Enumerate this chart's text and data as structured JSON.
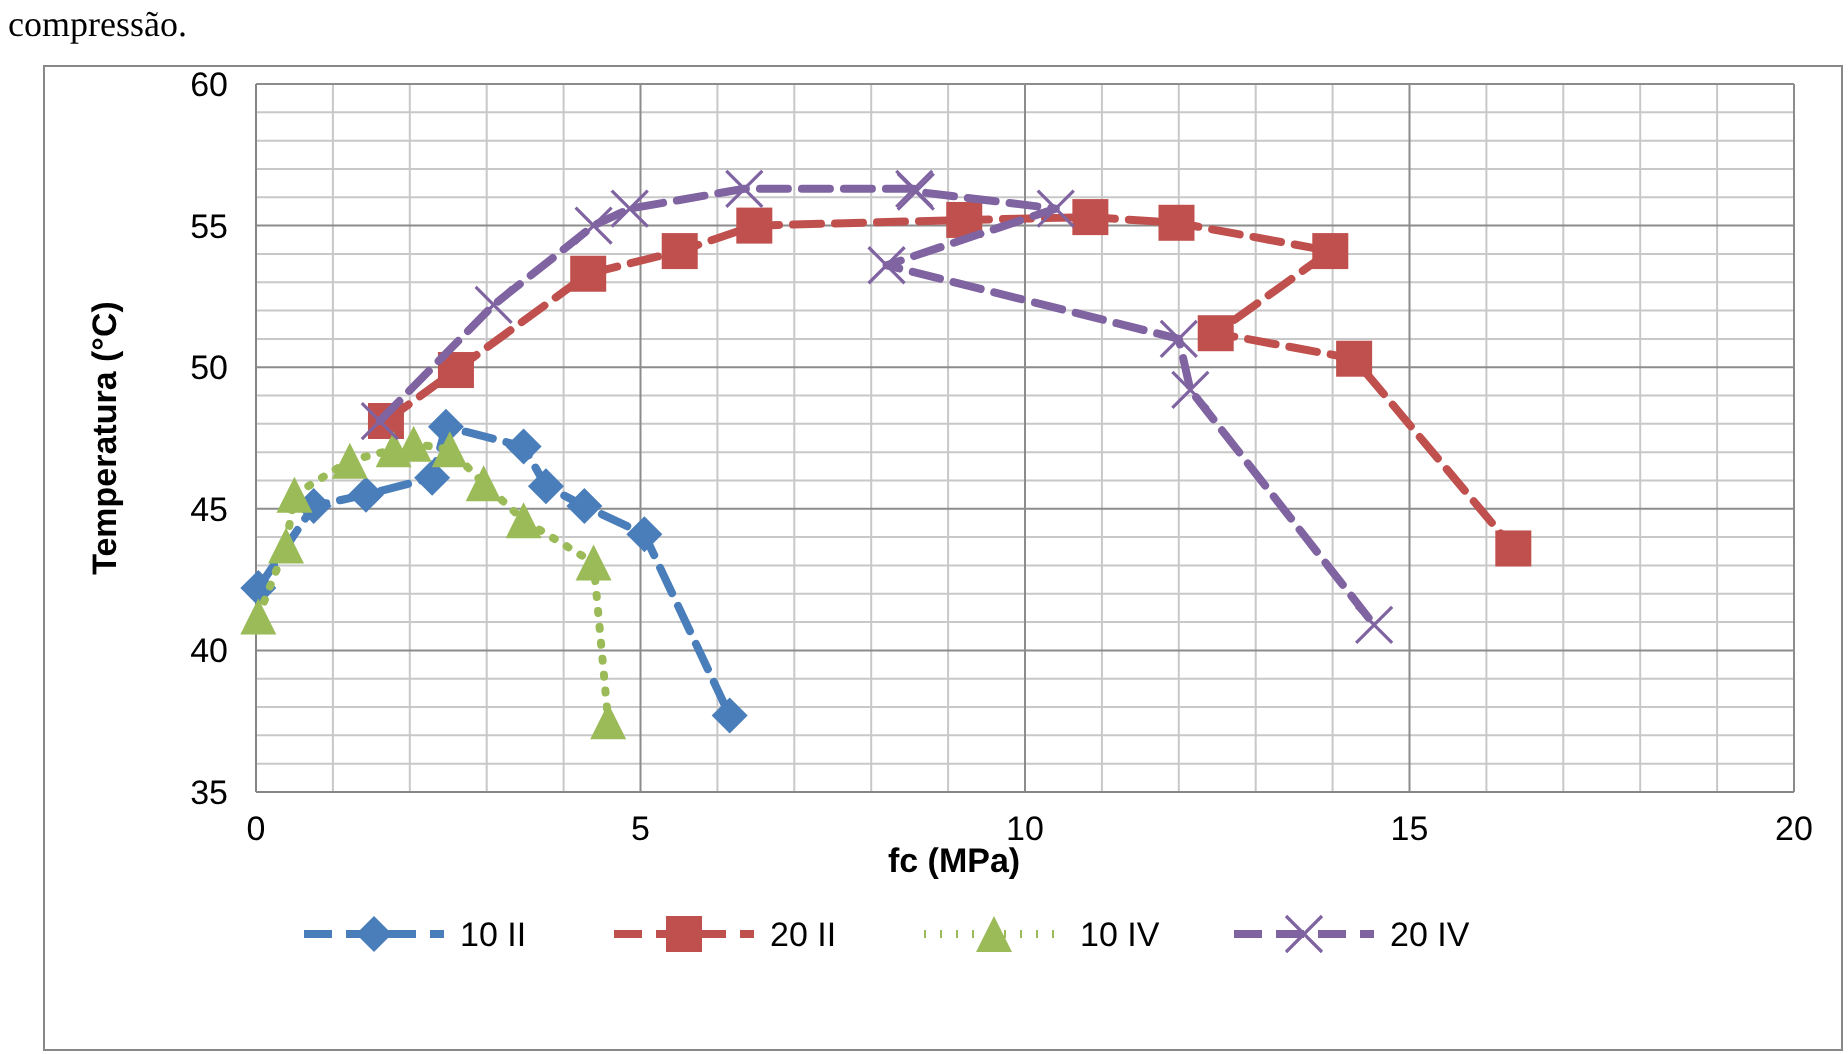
{
  "chart_data": {
    "type": "line",
    "xlabel": "fc (MPa)",
    "ylabel": "Temperatura (°C)",
    "annotations": [
      "compressão."
    ],
    "xlim": [
      0,
      20
    ],
    "xticks": [
      0,
      5,
      10,
      15,
      20
    ],
    "ylim": [
      35,
      60
    ],
    "yticks": [
      35,
      40,
      45,
      50,
      55,
      60
    ],
    "grid": true,
    "legend": "bottom",
    "series": [
      {
        "name": "10 II",
        "color": "#4a7ebb",
        "marker": "diamond",
        "line_style": "dashed",
        "x": [
          0.03,
          0.75,
          1.43,
          2.29,
          2.47,
          3.48,
          3.77,
          4.27,
          5.05,
          6.16
        ],
        "values": [
          42.2,
          45.1,
          45.5,
          46.1,
          47.9,
          47.2,
          45.8,
          45.1,
          44.1,
          37.7
        ]
      },
      {
        "name": "20 II",
        "color": "#c0504d",
        "marker": "square",
        "line_style": "dashed",
        "x": [
          1.69,
          2.6,
          4.32,
          5.51,
          6.48,
          9.21,
          10.85,
          11.97,
          13.97,
          12.48,
          14.28,
          16.35
        ],
        "values": [
          48.1,
          49.9,
          53.3,
          54.1,
          55.0,
          55.2,
          55.3,
          55.1,
          54.1,
          51.2,
          50.3,
          43.6
        ]
      },
      {
        "name": "10 IV",
        "color": "#9bbb59",
        "marker": "triangle",
        "line_style": "dotted",
        "x": [
          0.03,
          0.39,
          0.5,
          1.22,
          1.79,
          2.05,
          2.52,
          2.96,
          3.48,
          4.39,
          4.58
        ],
        "values": [
          41.2,
          43.7,
          45.5,
          46.7,
          47.1,
          47.3,
          47.1,
          45.9,
          44.6,
          43.1,
          37.5
        ]
      },
      {
        "name": "20 IV",
        "color": "#8064a2",
        "marker": "cross",
        "line_style": "dashed",
        "x": [
          1.61,
          3.09,
          4.39,
          4.86,
          6.35,
          8.56,
          8.58,
          10.4,
          8.2,
          12.0,
          12.15,
          14.54
        ],
        "values": [
          48.1,
          52.2,
          55.0,
          55.6,
          56.3,
          56.3,
          56.2,
          55.6,
          53.6,
          51.0,
          49.2,
          40.9
        ]
      }
    ]
  }
}
